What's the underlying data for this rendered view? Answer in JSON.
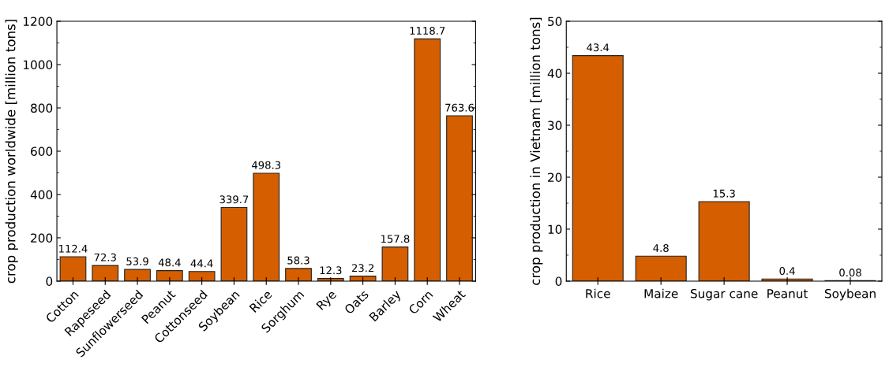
{
  "chart_data": [
    {
      "type": "bar",
      "ylabel": "crop production worldwide [million tons]",
      "categories": [
        "Cotton",
        "Rapeseed",
        "Sunflowerseed",
        "Peanut",
        "Cottonseed",
        "Soybean",
        "Rice",
        "Sorghum",
        "Rye",
        "Oats",
        "Barley",
        "Corn",
        "Wheat"
      ],
      "values": [
        112.4,
        72.3,
        53.9,
        48.4,
        44.4,
        339.7,
        498.3,
        58.3,
        12.3,
        23.2,
        157.8,
        1118.7,
        763.6
      ],
      "color": "#d45e00",
      "ylim": [
        0,
        1200
      ],
      "yticks": [
        0,
        200,
        400,
        600,
        800,
        1000,
        1200
      ],
      "data_labels": true,
      "grid": false,
      "legend": false
    },
    {
      "type": "bar",
      "ylabel": "crop production in Vietnam [million tons]",
      "categories": [
        "Rice",
        "Maize",
        "Sugar cane",
        "Peanut",
        "Soybean"
      ],
      "values": [
        43.4,
        4.8,
        15.3,
        0.4,
        0.08
      ],
      "color": "#d45e00",
      "ylim": [
        0,
        50
      ],
      "yticks": [
        0,
        10,
        20,
        30,
        40,
        50
      ],
      "data_labels": true,
      "grid": false,
      "legend": false
    }
  ]
}
